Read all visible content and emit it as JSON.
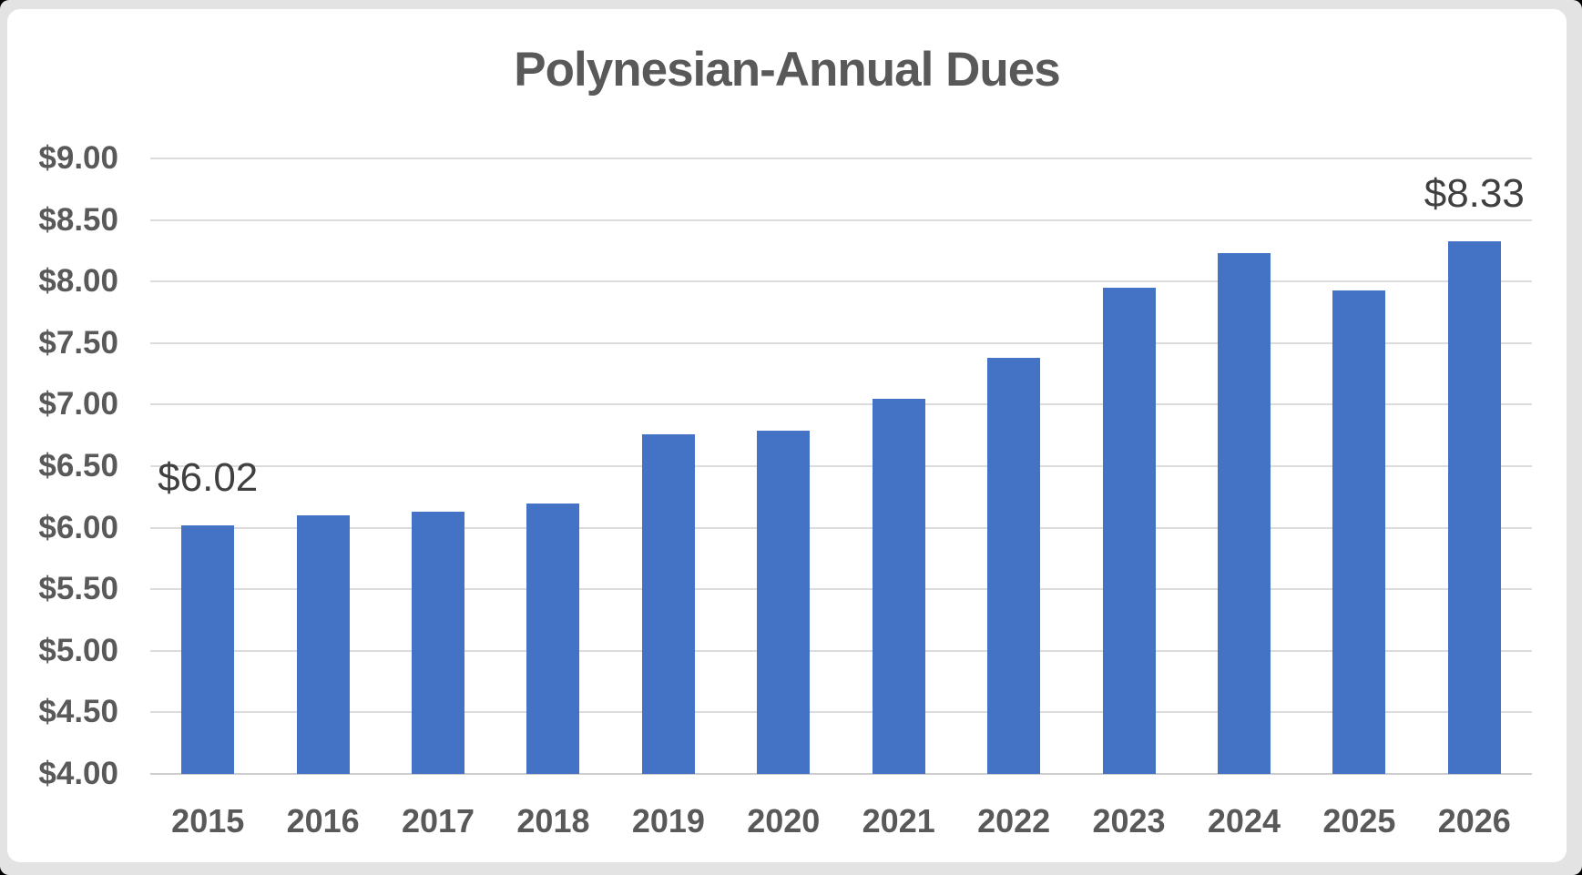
{
  "page": {
    "outer_background": "#000000",
    "background": "#e3e3e3",
    "card_background": "#ffffff"
  },
  "chart_data": {
    "type": "bar",
    "title": "Polynesian-Annual Dues",
    "categories": [
      "2015",
      "2016",
      "2017",
      "2018",
      "2019",
      "2020",
      "2021",
      "2022",
      "2023",
      "2024",
      "2025",
      "2026"
    ],
    "values": [
      6.02,
      6.1,
      6.13,
      6.2,
      6.76,
      6.79,
      7.05,
      7.38,
      7.95,
      8.23,
      7.93,
      8.33
    ],
    "data_labels": [
      "$6.02",
      null,
      null,
      null,
      null,
      null,
      null,
      null,
      null,
      null,
      null,
      "$8.33"
    ],
    "xlabel": "",
    "ylabel": "",
    "ylim": [
      4,
      9
    ],
    "ytick_step": 0.5,
    "ytick_labels": [
      "$4.00",
      "$4.50",
      "$5.00",
      "$5.50",
      "$6.00",
      "$6.50",
      "$7.00",
      "$7.50",
      "$8.00",
      "$8.50",
      "$9.00"
    ],
    "grid": true,
    "legend": false,
    "colors": {
      "bar": "#4472C4",
      "gridline": "#DCDCDC",
      "axis_line": "#CDCDCD",
      "tick_label": "#595959",
      "title": "#595959",
      "data_label": "#404040"
    }
  }
}
